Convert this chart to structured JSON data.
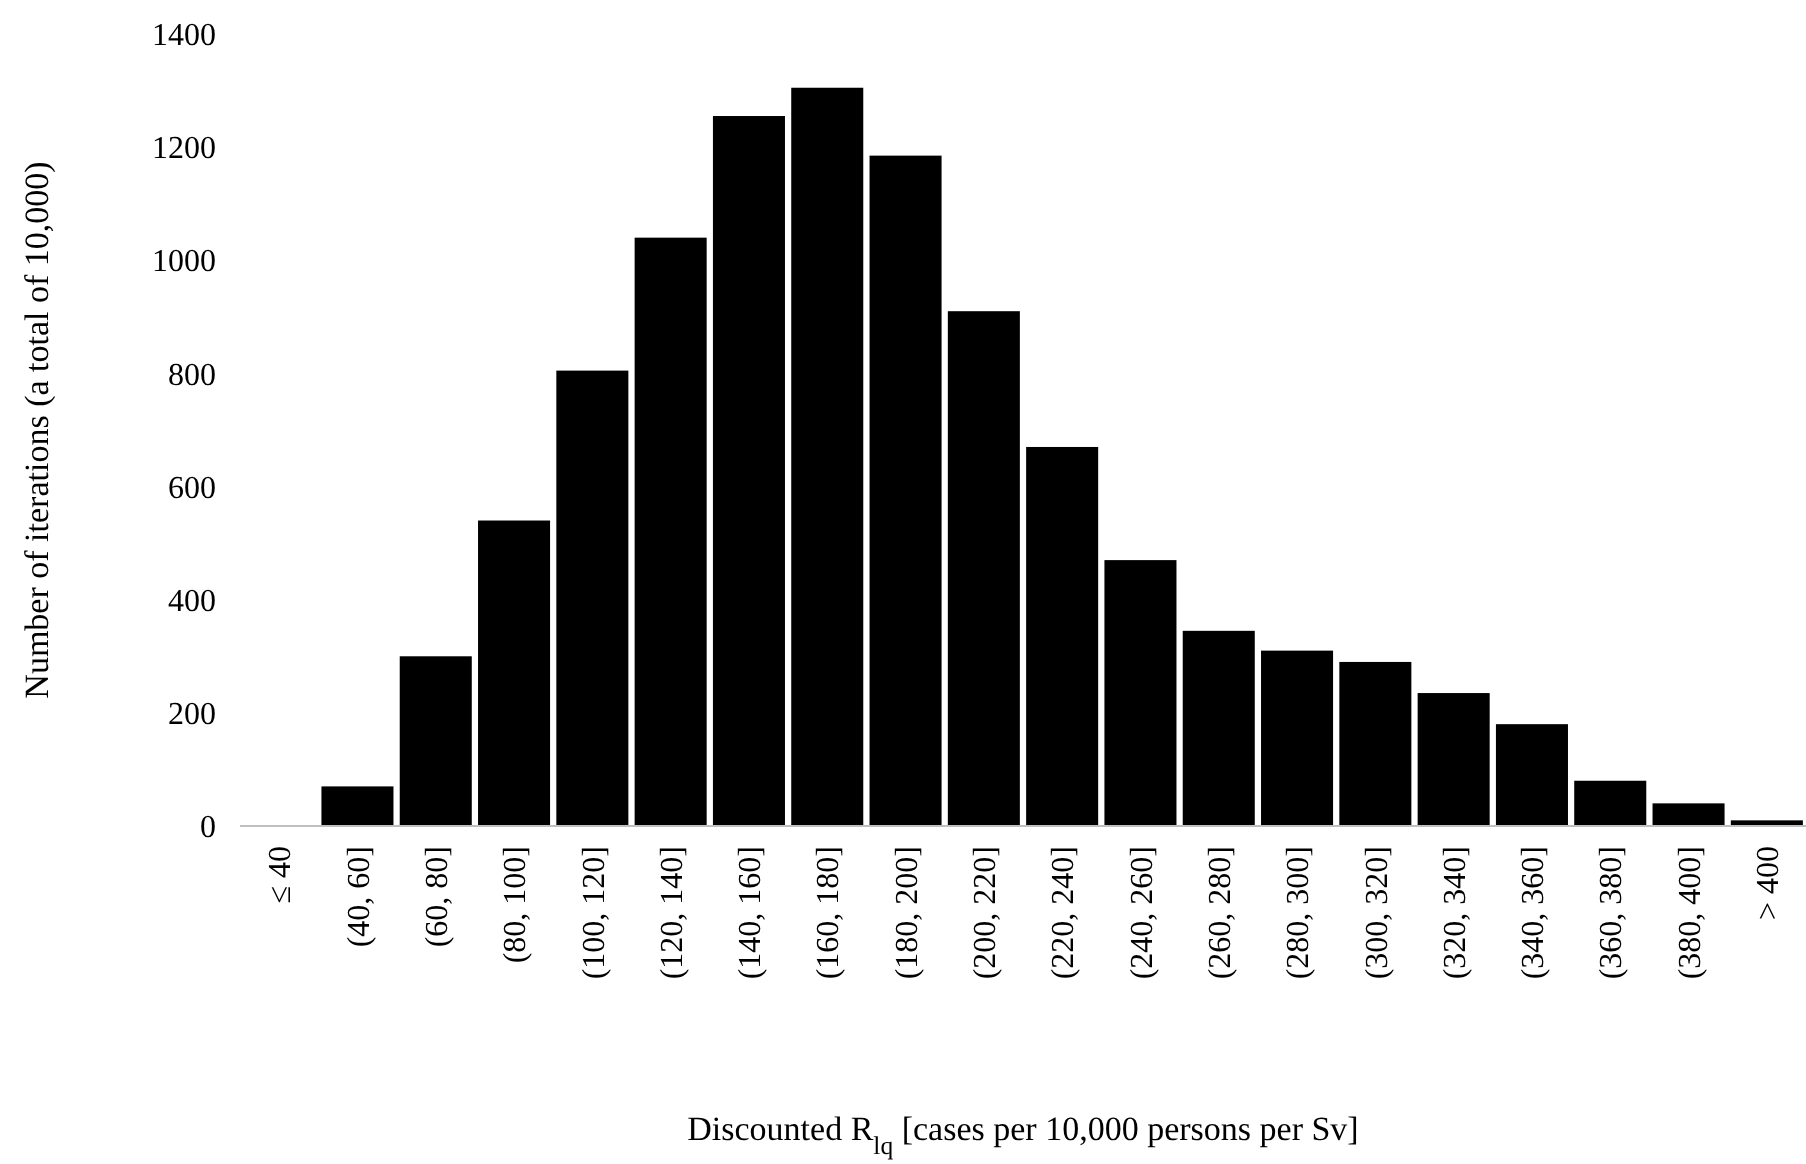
{
  "chart_data": {
    "type": "bar",
    "xlabel": "Discounted R$_{lq}$ [cases per 10,000 persons per Sv]",
    "ylabel": "Number of iterations (a total of 10,000)",
    "categories": [
      "≤ 40",
      "(40, 60]",
      "(60, 80]",
      "(80, 100]",
      "(100, 120]",
      "(120, 140]",
      "(140, 160]",
      "(160, 180]",
      "(180, 200]",
      "(200, 220]",
      "(220, 240]",
      "(240, 260]",
      "(260, 280]",
      "(280, 300]",
      "(300, 320]",
      "(320, 340]",
      "(340, 360]",
      "(360, 380]",
      "(380, 400]",
      "> 400"
    ],
    "values": [
      0,
      70,
      300,
      540,
      805,
      1040,
      1255,
      1305,
      1185,
      910,
      670,
      470,
      345,
      310,
      290,
      235,
      180,
      80,
      40,
      10
    ],
    "color": "#000000",
    "ylim": [
      0,
      1400
    ],
    "yticks": [
      0,
      200,
      400,
      600,
      800,
      1000,
      1200,
      1400
    ],
    "grid": false
  }
}
